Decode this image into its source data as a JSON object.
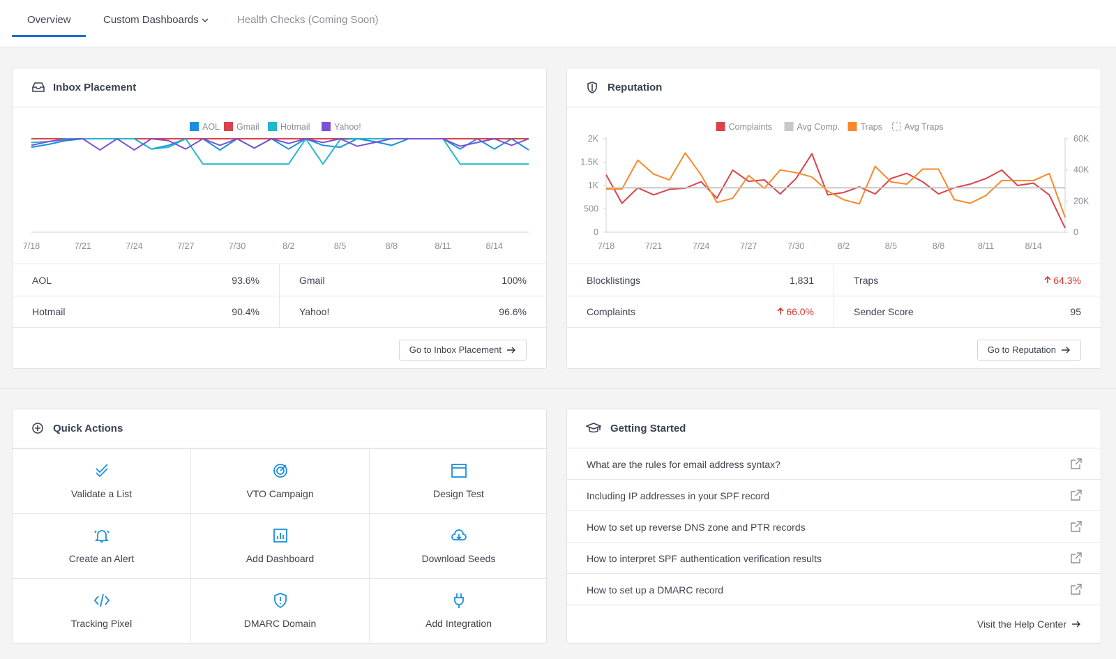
{
  "nav": {
    "tabs": [
      "Overview",
      "Custom Dashboards",
      "Health Checks (Coming Soon)"
    ]
  },
  "chart_data": [
    {
      "type": "line",
      "title": "Inbox Placement",
      "legend": "top",
      "categories": [
        "7/18",
        null,
        null,
        "7/21",
        null,
        null,
        "7/24",
        null,
        null,
        "7/27",
        null,
        null,
        "7/30",
        null,
        null,
        "8/2",
        null,
        null,
        "8/5",
        null,
        null,
        "8/8",
        null,
        null,
        "8/11",
        null,
        null,
        "8/14",
        null,
        null
      ],
      "ylim": [
        0,
        100
      ],
      "series": [
        {
          "name": "AOL",
          "color": "#1a8fdd",
          "values": [
            91,
            94,
            98,
            100,
            100,
            100,
            100,
            89,
            93,
            100,
            100,
            88,
            100,
            90,
            100,
            89,
            100,
            93,
            91,
            100,
            97,
            93,
            100,
            100,
            100,
            89,
            100,
            89,
            100,
            88
          ]
        },
        {
          "name": "Gmail",
          "color": "#d9434b",
          "values": [
            100,
            100,
            100,
            100,
            100,
            100,
            100,
            100,
            100,
            100,
            100,
            100,
            100,
            100,
            100,
            100,
            100,
            100,
            100,
            100,
            100,
            100,
            100,
            100,
            100,
            100,
            100,
            100,
            100,
            100
          ]
        },
        {
          "name": "Hotmail",
          "color": "#1fb8cd",
          "values": [
            96,
            97,
            100,
            100,
            100,
            100,
            100,
            89,
            91,
            100,
            73,
            73,
            73,
            73,
            73,
            73,
            100,
            73,
            99,
            100,
            100,
            100,
            100,
            100,
            100,
            73,
            73,
            73,
            73,
            73
          ]
        },
        {
          "name": "Yahoo!",
          "color": "#7b52d6",
          "values": [
            93,
            97,
            99,
            100,
            88,
            100,
            88,
            100,
            98,
            89,
            100,
            93,
            100,
            90,
            100,
            95,
            100,
            96,
            100,
            92,
            96,
            100,
            100,
            100,
            100,
            92,
            96,
            100,
            93,
            100
          ]
        }
      ]
    },
    {
      "type": "line",
      "title": "Reputation",
      "legend": "top",
      "categories": [
        "7/18",
        null,
        null,
        "7/21",
        null,
        null,
        "7/24",
        null,
        null,
        "7/27",
        null,
        null,
        "7/30",
        null,
        null,
        "8/2",
        null,
        null,
        "8/5",
        null,
        null,
        "8/8",
        null,
        null,
        "8/11",
        null,
        null,
        "8/14",
        null,
        null
      ],
      "ylim": [
        0,
        2000
      ],
      "yticks": [
        0,
        500,
        {
          "value": 1000,
          "label": "1K"
        },
        {
          "value": 1500,
          "label": "1.5K"
        },
        {
          "value": 2000,
          "label": "2K"
        }
      ],
      "y2lim": [
        0,
        60000
      ],
      "y2ticks": [
        0,
        {
          "value": 20000,
          "label": "20K"
        },
        {
          "value": 40000,
          "label": "40K"
        },
        {
          "value": 60000,
          "label": "60K"
        }
      ],
      "series": [
        {
          "name": "Complaints",
          "color": "#d9434b",
          "values": [
            1230,
            620,
            950,
            800,
            920,
            940,
            1080,
            730,
            1330,
            1090,
            1120,
            820,
            1150,
            1680,
            800,
            850,
            970,
            820,
            1150,
            1260,
            1080,
            820,
            950,
            1030,
            1150,
            1330,
            1000,
            1050,
            800,
            90
          ]
        },
        {
          "name": "Avg Comp.",
          "color": "#c8c8c8",
          "values": [
            950,
            950,
            950,
            950,
            950,
            950,
            950,
            950,
            950,
            950,
            950,
            950,
            950,
            950,
            950,
            950,
            950,
            950,
            950,
            950,
            950,
            950,
            950,
            950,
            950,
            950,
            950,
            950,
            950,
            950
          ]
        },
        {
          "name": "Traps",
          "color": "#f7892b",
          "axis": "y2",
          "values": [
            27700,
            27700,
            46300,
            37300,
            33600,
            50900,
            36800,
            19100,
            21800,
            36400,
            28200,
            40000,
            38200,
            35500,
            26400,
            20900,
            18200,
            42300,
            32300,
            30900,
            40500,
            40500,
            20900,
            18600,
            23600,
            33200,
            33200,
            33200,
            37700,
            9500
          ]
        },
        {
          "name": "Avg Traps",
          "color": "#c8c8c8",
          "axis": "y2",
          "dashed": true,
          "values": [
            28500,
            28500,
            28500,
            28500,
            28500,
            28500,
            28500,
            28500,
            28500,
            28500,
            28500,
            28500,
            28500,
            28500,
            28500,
            28500,
            28500,
            28500,
            28500,
            28500,
            28500,
            28500,
            28500,
            28500,
            28500,
            28500,
            28500,
            28500,
            28500,
            28500
          ]
        }
      ]
    }
  ],
  "inbox_placement": {
    "stats": [
      {
        "label": "AOL",
        "value": "93.6%"
      },
      {
        "label": "Gmail",
        "value": "100%"
      },
      {
        "label": "Hotmail",
        "value": "90.4%"
      },
      {
        "label": "Yahoo!",
        "value": "96.6%"
      }
    ],
    "button": "Go to Inbox Placement"
  },
  "reputation": {
    "stats": [
      {
        "label": "Blocklistings",
        "value": "1,831"
      },
      {
        "label": "Traps",
        "value": "64.3%",
        "trend": "up"
      },
      {
        "label": "Complaints",
        "value": "66.0%",
        "trend": "up"
      },
      {
        "label": "Sender Score",
        "value": "95"
      }
    ],
    "button": "Go to Reputation"
  },
  "quick_actions": {
    "title": "Quick Actions",
    "items": [
      "Validate a List",
      "VTO Campaign",
      "Design Test",
      "Create an Alert",
      "Add Dashboard",
      "Download Seeds",
      "Tracking Pixel",
      "DMARC Domain",
      "Add Integration"
    ]
  },
  "getting_started": {
    "title": "Getting Started",
    "links": [
      "What are the rules for email address syntax?",
      "Including IP addresses in your SPF record",
      "How to set up reverse DNS zone and PTR records",
      "How to interpret SPF authentication verification results",
      "How to set up a DMARC record"
    ],
    "footer": "Visit the Help Center"
  }
}
